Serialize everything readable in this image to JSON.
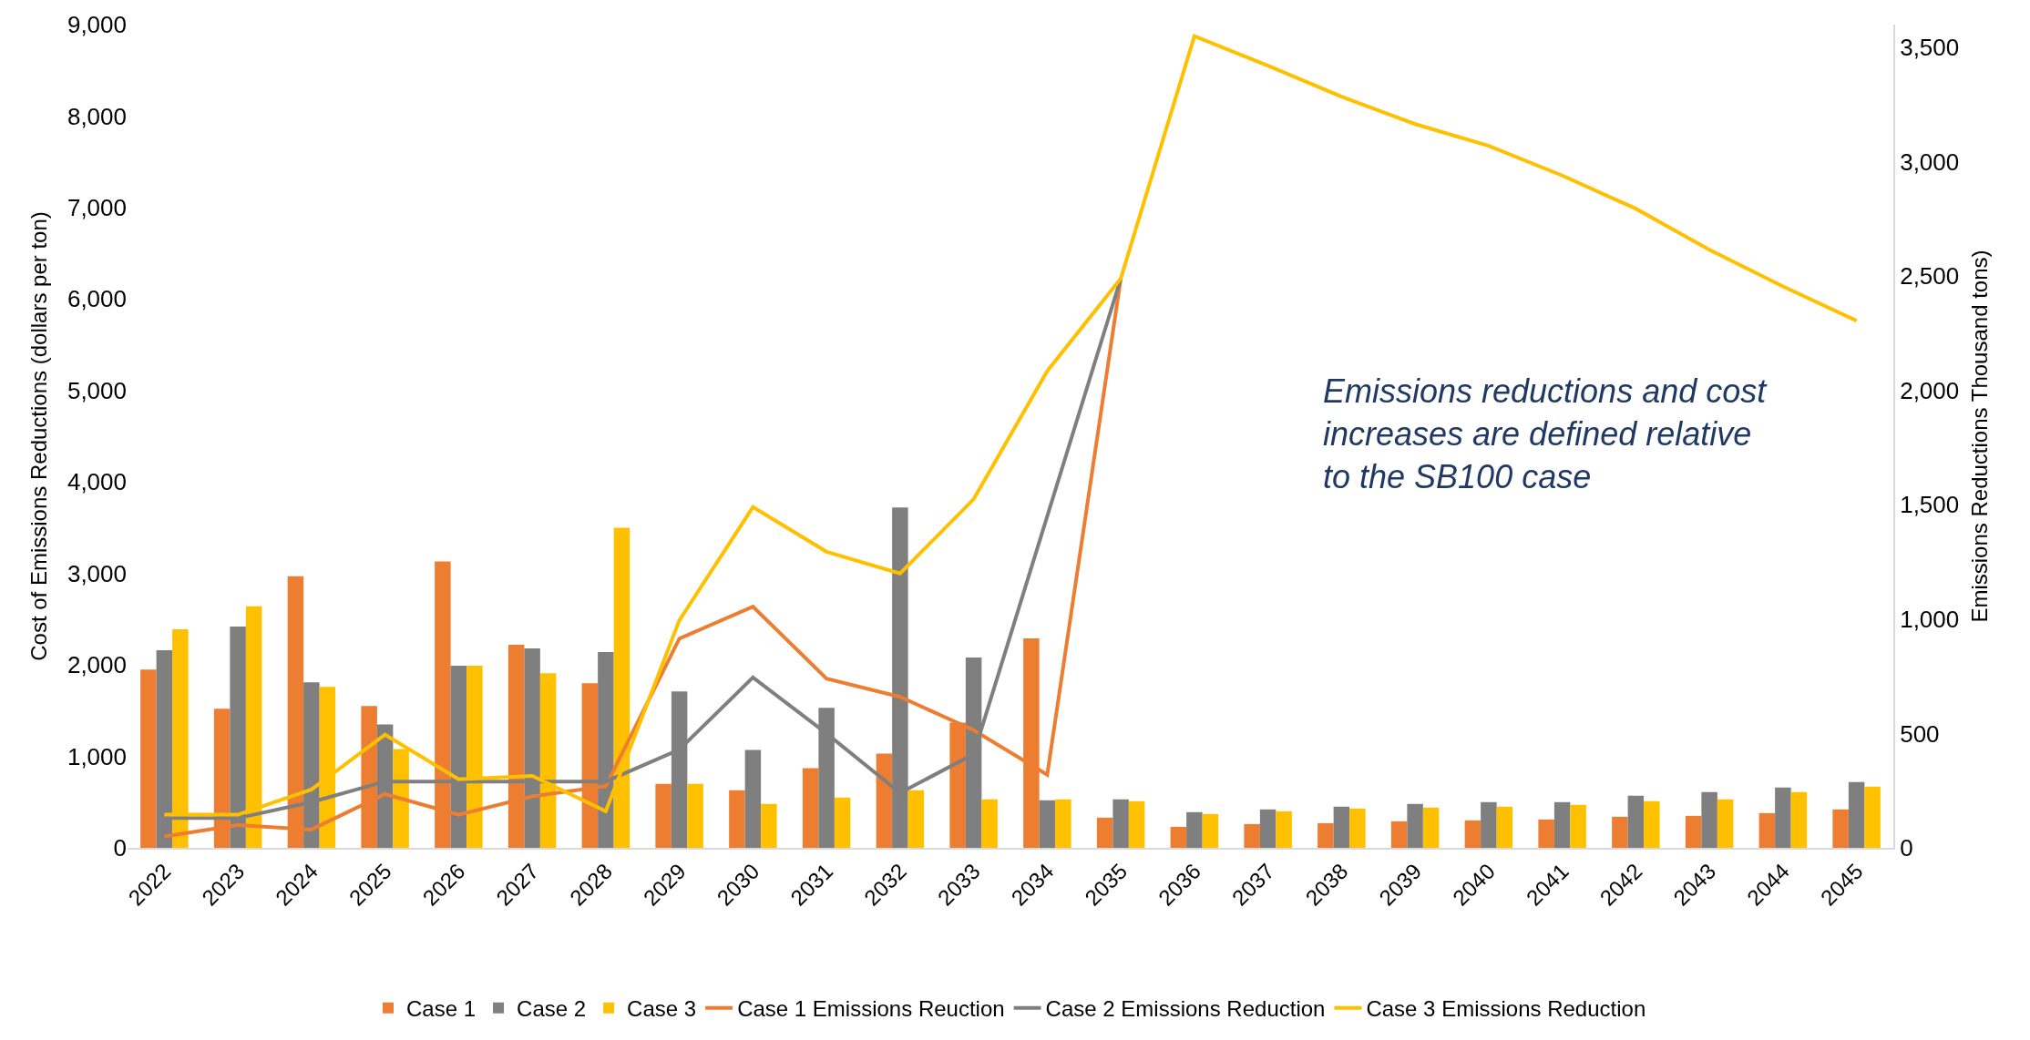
{
  "chart_data": {
    "type": "bar",
    "categories": [
      "2022",
      "2023",
      "2024",
      "2025",
      "2026",
      "2027",
      "2028",
      "2029",
      "2030",
      "2031",
      "2032",
      "2033",
      "2034",
      "2035",
      "2036",
      "2037",
      "2038",
      "2039",
      "2040",
      "2041",
      "2042",
      "2043",
      "2044",
      "2045"
    ],
    "ylabel": "Cost of Emissions Reductions (dollars per ton)",
    "y2label": "Emissions Reductions Thousand tons)",
    "ylim": [
      0,
      9000
    ],
    "yticks": [
      {
        "value": 0,
        "label": "0"
      },
      {
        "value": 1000,
        "label": "1,000"
      },
      {
        "value": 2000,
        "label": "2,000"
      },
      {
        "value": 3000,
        "label": "3,000"
      },
      {
        "value": 4000,
        "label": "4,000"
      },
      {
        "value": 5000,
        "label": "5,000"
      },
      {
        "value": 6000,
        "label": "6,000"
      },
      {
        "value": 7000,
        "label": "7,000"
      },
      {
        "value": 8000,
        "label": "8,000"
      },
      {
        "value": 9000,
        "label": "9,000"
      }
    ],
    "y2lim": [
      0,
      3600
    ],
    "y2ticks": [
      {
        "value": 0,
        "label": "0"
      },
      {
        "value": 500,
        "label": "500"
      },
      {
        "value": 1000,
        "label": "1,000"
      },
      {
        "value": 1500,
        "label": "1,500"
      },
      {
        "value": 2000,
        "label": "2,000"
      },
      {
        "value": 2500,
        "label": "2,500"
      },
      {
        "value": 3000,
        "label": "3,000"
      },
      {
        "value": 3500,
        "label": "3,500"
      }
    ],
    "legend": "bottom",
    "annotations": [
      "Emissions reductions and cost increases are defined relative to the SB100 case"
    ],
    "series": [
      {
        "name": "Case 1",
        "color": "#ed7d31",
        "values": [
          1950,
          1520,
          2970,
          1550,
          3130,
          2220,
          1800,
          700,
          630,
          870,
          1030,
          1370,
          2290,
          330,
          230,
          260,
          270,
          290,
          300,
          310,
          340,
          350,
          380,
          420
        ]
      },
      {
        "name": "Case 2",
        "color": "#7f7f7f",
        "values": [
          2160,
          2420,
          1810,
          1350,
          1990,
          2180,
          2140,
          1710,
          1070,
          1530,
          3720,
          2080,
          520,
          530,
          390,
          420,
          450,
          480,
          500,
          500,
          570,
          610,
          660,
          720
        ]
      },
      {
        "name": "Case 3",
        "color": "#ffc000",
        "values": [
          2390,
          2640,
          1760,
          1080,
          1990,
          1910,
          3500,
          700,
          480,
          550,
          630,
          530,
          530,
          510,
          370,
          400,
          430,
          440,
          450,
          470,
          510,
          530,
          610,
          670
        ]
      },
      {
        "name": "Case 1 Emissions Reuction",
        "type": "line",
        "axis": "y2",
        "color": "#ed7d31",
        "values": [
          50,
          100,
          80,
          235,
          145,
          225,
          270,
          915,
          1055,
          740,
          660,
          515,
          320,
          2490,
          null,
          null,
          null,
          null,
          null,
          null,
          null,
          null,
          null,
          null
        ]
      },
      {
        "name": "Case 2 Emissions Reduction",
        "type": "line",
        "axis": "y2",
        "color": "#7f7f7f",
        "values": [
          130,
          130,
          200,
          290,
          290,
          290,
          290,
          430,
          745,
          500,
          240,
          410,
          1450,
          2490,
          null,
          null,
          null,
          null,
          null,
          null,
          null,
          null,
          null,
          null
        ]
      },
      {
        "name": "Case 3 Emissions Reduction",
        "type": "line",
        "axis": "y2",
        "color": "#ffc000",
        "values": [
          145,
          145,
          255,
          495,
          300,
          315,
          160,
          995,
          1490,
          1295,
          1200,
          1525,
          2085,
          2490,
          3550,
          3420,
          3285,
          3165,
          3070,
          2940,
          2795,
          2615,
          2455,
          2305
        ]
      }
    ]
  }
}
